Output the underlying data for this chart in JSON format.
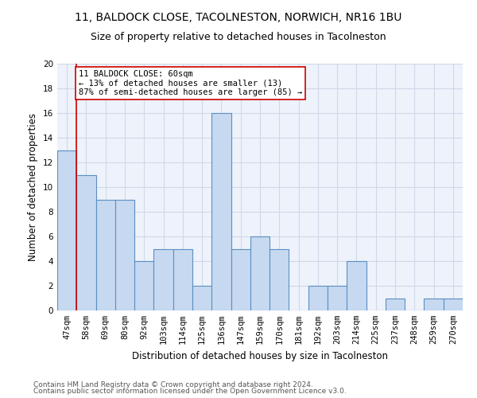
{
  "title1": "11, BALDOCK CLOSE, TACOLNESTON, NORWICH, NR16 1BU",
  "title2": "Size of property relative to detached houses in Tacolneston",
  "xlabel": "Distribution of detached houses by size in Tacolneston",
  "ylabel": "Number of detached properties",
  "categories": [
    "47sqm",
    "58sqm",
    "69sqm",
    "80sqm",
    "92sqm",
    "103sqm",
    "114sqm",
    "125sqm",
    "136sqm",
    "147sqm",
    "159sqm",
    "170sqm",
    "181sqm",
    "192sqm",
    "203sqm",
    "214sqm",
    "225sqm",
    "237sqm",
    "248sqm",
    "259sqm",
    "270sqm"
  ],
  "values": [
    13,
    11,
    9,
    9,
    4,
    5,
    5,
    2,
    16,
    5,
    6,
    5,
    0,
    2,
    2,
    4,
    0,
    1,
    0,
    1,
    1
  ],
  "bar_color": "#c6d9f0",
  "bar_edge_color": "#5a8fc4",
  "vline_color": "#cc0000",
  "annotation_text": "11 BALDOCK CLOSE: 60sqm\n← 13% of detached houses are smaller (13)\n87% of semi-detached houses are larger (85) →",
  "annotation_box_color": "#cc0000",
  "ylim": [
    0,
    20
  ],
  "yticks": [
    0,
    2,
    4,
    6,
    8,
    10,
    12,
    14,
    16,
    18,
    20
  ],
  "grid_color": "#d0d8e8",
  "bg_color": "#eef2fa",
  "footer1": "Contains HM Land Registry data © Crown copyright and database right 2024.",
  "footer2": "Contains public sector information licensed under the Open Government Licence v3.0.",
  "title1_fontsize": 10,
  "title2_fontsize": 9,
  "xlabel_fontsize": 8.5,
  "ylabel_fontsize": 8.5,
  "tick_fontsize": 7.5,
  "annotation_fontsize": 7.5,
  "footer_fontsize": 6.5
}
